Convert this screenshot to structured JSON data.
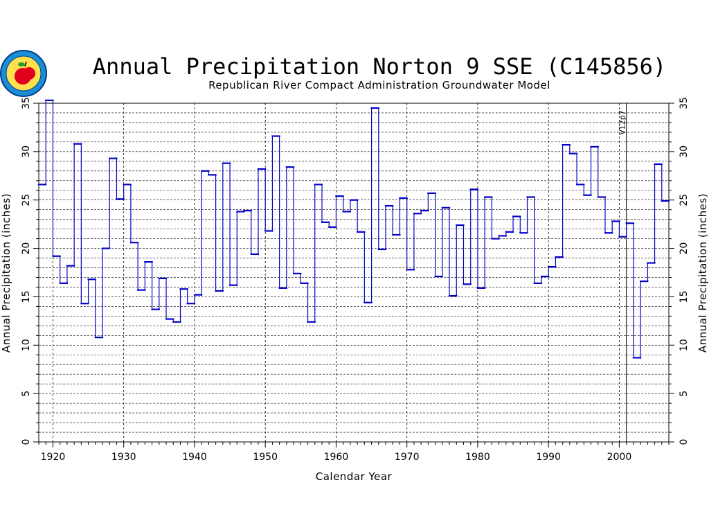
{
  "chart_data": {
    "type": "line",
    "step": true,
    "title": "Annual Precipitation Norton 9 SSE (C145856)",
    "subtitle": "Republican River Compact Administration Groundwater Model",
    "xlabel": "Calendar Year",
    "ylabel": "Annual Precipitation (inches)",
    "xlim": [
      1918,
      2007
    ],
    "ylim": [
      0,
      35
    ],
    "xticks": [
      "1920",
      "1930",
      "1940",
      "1950",
      "1960",
      "1970",
      "1980",
      "1990",
      "2000"
    ],
    "yticks": [
      "0",
      "5",
      "10",
      "15",
      "20",
      "25",
      "30",
      "35"
    ],
    "grid": true,
    "series_color": "#0000c8",
    "annotation": {
      "label": "V12p7",
      "x": 2001
    },
    "x": [
      1918,
      1919,
      1920,
      1921,
      1922,
      1923,
      1924,
      1925,
      1926,
      1927,
      1928,
      1929,
      1930,
      1931,
      1932,
      1933,
      1934,
      1935,
      1936,
      1937,
      1938,
      1939,
      1940,
      1941,
      1942,
      1943,
      1944,
      1945,
      1946,
      1947,
      1948,
      1949,
      1950,
      1951,
      1952,
      1953,
      1954,
      1955,
      1956,
      1957,
      1958,
      1959,
      1960,
      1961,
      1962,
      1963,
      1964,
      1965,
      1966,
      1967,
      1968,
      1969,
      1970,
      1971,
      1972,
      1973,
      1974,
      1975,
      1976,
      1977,
      1978,
      1979,
      1980,
      1981,
      1982,
      1983,
      1984,
      1985,
      1986,
      1987,
      1988,
      1989,
      1990,
      1991,
      1992,
      1993,
      1994,
      1995,
      1996,
      1997,
      1998,
      1999,
      2000,
      2001,
      2002,
      2003,
      2004,
      2005,
      2006
    ],
    "values": [
      26.6,
      35.3,
      19.2,
      16.4,
      18.2,
      30.8,
      14.3,
      16.8,
      10.8,
      20.0,
      29.3,
      25.1,
      26.6,
      20.6,
      15.7,
      18.6,
      13.7,
      16.9,
      12.7,
      12.4,
      15.8,
      14.3,
      15.2,
      28.0,
      27.6,
      15.6,
      28.8,
      16.2,
      23.8,
      23.9,
      19.4,
      28.2,
      21.8,
      31.6,
      15.9,
      28.4,
      17.4,
      16.4,
      12.4,
      26.6,
      22.7,
      22.2,
      25.4,
      23.8,
      25.0,
      21.7,
      14.4,
      34.5,
      19.9,
      24.4,
      21.4,
      25.2,
      17.8,
      23.6,
      23.9,
      25.7,
      17.1,
      24.2,
      15.1,
      22.4,
      16.3,
      26.1,
      15.9,
      25.3,
      21.0,
      21.3,
      21.7,
      23.3,
      21.6,
      25.3,
      16.4,
      17.1,
      18.1,
      19.1,
      30.7,
      29.8,
      26.6,
      25.5,
      30.5,
      25.3,
      21.6,
      22.8,
      21.2,
      22.6,
      8.7,
      16.6,
      18.5,
      28.7,
      24.9
    ]
  }
}
